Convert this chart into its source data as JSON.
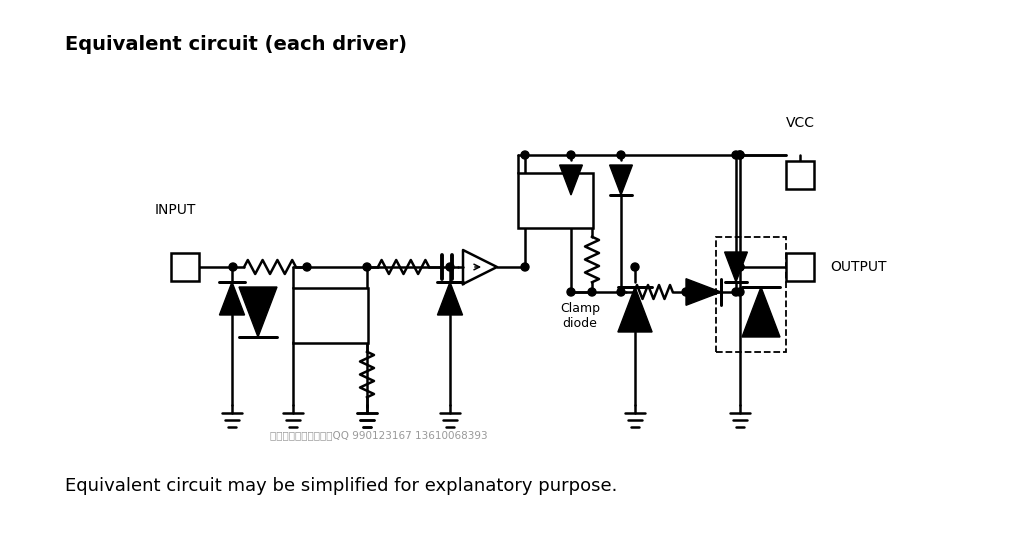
{
  "title": "Equivalent circuit (each driver)",
  "footnote": "Equivalent circuit may be simplified for explanatory purpose.",
  "watermark": "东芸代理、大量现货：QQ 990123167 13610068393",
  "bg_color": "#ffffff",
  "fg_color": "#000000",
  "title_fontsize": 14,
  "footnote_fontsize": 13,
  "watermark_fontsize": 7.5
}
